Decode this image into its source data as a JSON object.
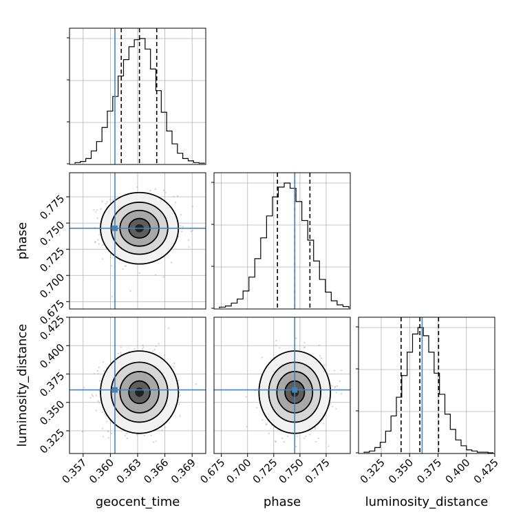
{
  "chart_data": {
    "type": "corner",
    "params": [
      "geocent_time",
      "phase",
      "luminosity_distance"
    ],
    "truths": {
      "geocent_time": 0.3605,
      "phase": 0.745,
      "luminosity_distance": 0.361
    },
    "truth_color": "#4682b4",
    "ranges": {
      "geocent_time": [
        0.3555,
        0.3705
      ],
      "phase": [
        0.668,
        0.798
      ],
      "luminosity_distance": [
        0.305,
        0.425
      ]
    },
    "ticks": {
      "geocent_time": [
        "0.357",
        "0.360",
        "0.363",
        "0.366",
        "0.369"
      ],
      "phase": [
        "0.675",
        "0.700",
        "0.725",
        "0.750",
        "0.775"
      ],
      "luminosity_distance": [
        "0.325",
        "0.350",
        "0.375",
        "0.400",
        "0.425"
      ]
    },
    "quantiles": {
      "geocent_time": [
        0.3612,
        0.3632,
        0.3651
      ],
      "phase": [
        0.7285,
        0.745,
        0.7595
      ],
      "luminosity_distance": [
        0.3425,
        0.359,
        0.3755
      ]
    },
    "histograms": {
      "geocent_time": [
        2,
        4,
        9,
        22,
        38,
        62,
        90,
        115,
        150,
        178,
        200,
        212,
        214,
        196,
        162,
        125,
        88,
        56,
        34,
        18,
        9,
        5,
        2,
        1
      ],
      "phase": [
        2,
        4,
        9,
        16,
        30,
        54,
        86,
        122,
        160,
        193,
        210,
        217,
        208,
        185,
        152,
        118,
        82,
        50,
        28,
        13,
        6,
        3
      ],
      "luminosity_distance": [
        1,
        3,
        9,
        18,
        37,
        63,
        95,
        132,
        172,
        203,
        214,
        200,
        172,
        136,
        100,
        66,
        40,
        22,
        12,
        5,
        3,
        1,
        1,
        0
      ]
    },
    "axis_labels": {
      "geocent_time": "geocent_time",
      "phase": "phase",
      "luminosity_distance": "luminosity_distance"
    }
  }
}
